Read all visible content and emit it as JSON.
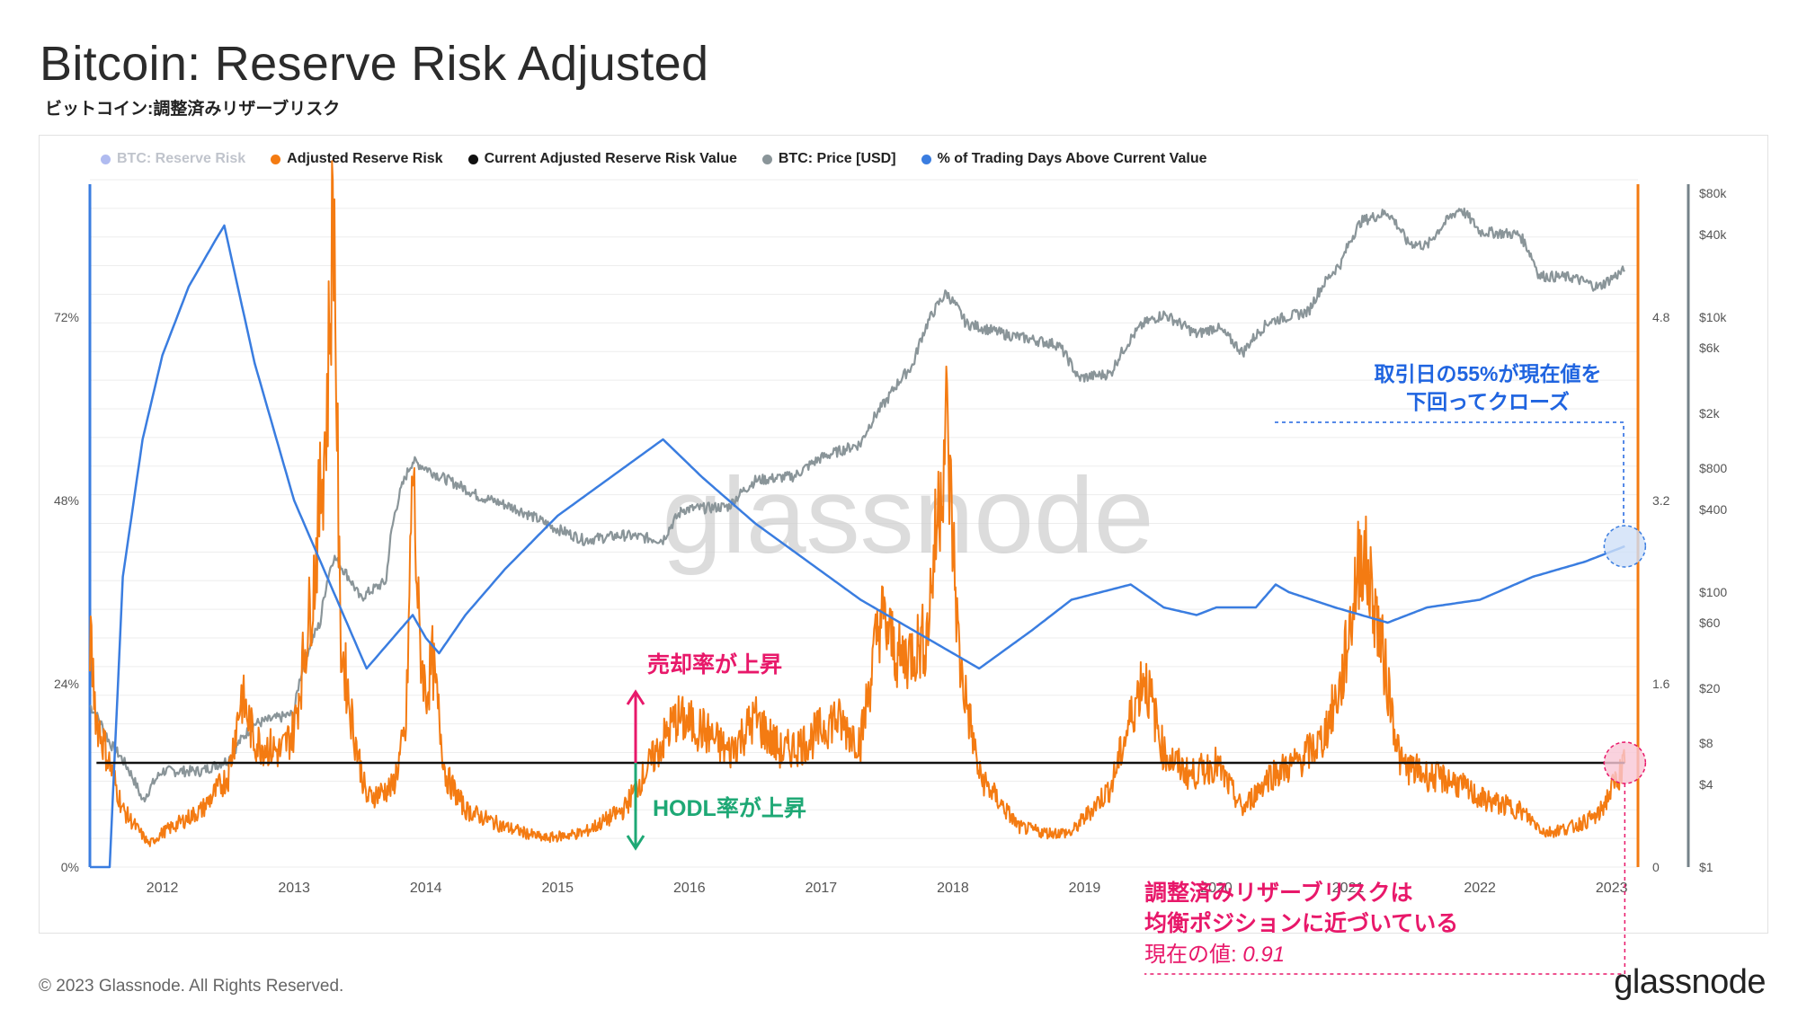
{
  "title": "Bitcoin: Reserve Risk Adjusted",
  "subtitle": "ビットコイン:調整済みリザーブリスク",
  "footer": "© 2023 Glassnode. All Rights Reserved.",
  "logo": "glassnode",
  "watermark": "glassnode",
  "colors": {
    "reserve_risk": "#7b8de6",
    "adjusted": "#f47b12",
    "current": "#111111",
    "price": "#8a9599",
    "pct": "#3a7de0",
    "pink": "#e8186a",
    "green": "#1ea875",
    "annotation_blue": "#1f64e0"
  },
  "legend": [
    {
      "label": "BTC: Reserve Risk",
      "color": "#7b8de6",
      "muted": true
    },
    {
      "label": "Adjusted Reserve Risk",
      "color": "#f47b12",
      "muted": false
    },
    {
      "label": "Current Adjusted Reserve Risk Value",
      "color": "#111111",
      "muted": false
    },
    {
      "label": "BTC: Price [USD]",
      "color": "#8a9599",
      "muted": false
    },
    {
      "label": "% of Trading Days Above Current Value",
      "color": "#3a7de0",
      "muted": false
    }
  ],
  "annotations": {
    "selling_up": "売却率が上昇",
    "hodl_up": "HODL率が上昇",
    "pct_note_line1": "取引日の55%が現在値を",
    "pct_note_line2": "下回ってクローズ",
    "equilibrium_line1": "調整済みリザーブリスクは",
    "equilibrium_line2": "均衡ポジションに近づいている",
    "current_label": "現在の値: ",
    "current_value": "0.91"
  },
  "chart_data": {
    "type": "line",
    "x_domain": [
      2011.45,
      2023.2
    ],
    "x_ticks": [
      "2012",
      "2013",
      "2014",
      "2015",
      "2016",
      "2017",
      "2018",
      "2019",
      "2020",
      "2021",
      "2022",
      "2023"
    ],
    "left_axis": {
      "label": "% of Trading Days Above Current Value",
      "ticks": [
        "0%",
        "24%",
        "48%",
        "72%"
      ],
      "range": [
        0,
        90
      ]
    },
    "right_axis_risk": {
      "label": "Adjusted Reserve Risk",
      "ticks": [
        "0",
        "1.6",
        "3.2",
        "4.8"
      ],
      "range": [
        0,
        6
      ]
    },
    "right_axis_price": {
      "label": "BTC: Price [USD]",
      "scale": "log",
      "ticks": [
        "$1",
        "$4",
        "$8",
        "$20",
        "$60",
        "$100",
        "$400",
        "$800",
        "$2k",
        "$6k",
        "$10k",
        "$40k",
        "$80k"
      ],
      "range": [
        1,
        100000
      ]
    },
    "current_adjusted_value": 0.91,
    "series": [
      {
        "name": "% of Trading Days Above Current Value",
        "axis": "left",
        "points": [
          [
            2011.45,
            0
          ],
          [
            2011.6,
            0
          ],
          [
            2011.7,
            38
          ],
          [
            2011.85,
            56
          ],
          [
            2012.0,
            67
          ],
          [
            2012.2,
            76
          ],
          [
            2012.4,
            82
          ],
          [
            2012.47,
            84
          ],
          [
            2012.7,
            66
          ],
          [
            2013.0,
            48
          ],
          [
            2013.3,
            36
          ],
          [
            2013.5,
            28
          ],
          [
            2013.55,
            26
          ],
          [
            2013.75,
            30
          ],
          [
            2013.9,
            33
          ],
          [
            2014.0,
            30
          ],
          [
            2014.1,
            28
          ],
          [
            2014.3,
            33
          ],
          [
            2014.6,
            39
          ],
          [
            2015.0,
            46
          ],
          [
            2015.4,
            51
          ],
          [
            2015.8,
            56
          ],
          [
            2016.1,
            51
          ],
          [
            2016.5,
            45
          ],
          [
            2016.9,
            40
          ],
          [
            2017.3,
            35
          ],
          [
            2017.7,
            31
          ],
          [
            2018.0,
            28
          ],
          [
            2018.2,
            26
          ],
          [
            2018.6,
            31
          ],
          [
            2018.9,
            35
          ],
          [
            2019.35,
            37
          ],
          [
            2019.6,
            34
          ],
          [
            2019.85,
            33
          ],
          [
            2020.0,
            34
          ],
          [
            2020.3,
            34
          ],
          [
            2020.45,
            37
          ],
          [
            2020.55,
            36
          ],
          [
            2020.9,
            34
          ],
          [
            2021.3,
            32
          ],
          [
            2021.6,
            34
          ],
          [
            2022.0,
            35
          ],
          [
            2022.4,
            38
          ],
          [
            2022.8,
            40
          ],
          [
            2023.1,
            42
          ]
        ]
      },
      {
        "name": "Adjusted Reserve Risk",
        "axis": "right_risk",
        "points": [
          [
            2011.45,
            2.0
          ],
          [
            2011.5,
            1.3
          ],
          [
            2011.7,
            0.5
          ],
          [
            2011.9,
            0.2
          ],
          [
            2012.0,
            0.3
          ],
          [
            2012.3,
            0.5
          ],
          [
            2012.5,
            0.8
          ],
          [
            2012.6,
            1.5
          ],
          [
            2012.7,
            1.1
          ],
          [
            2012.9,
            1.0
          ],
          [
            2013.0,
            1.2
          ],
          [
            2013.15,
            2.5
          ],
          [
            2013.25,
            4.0
          ],
          [
            2013.3,
            5.9
          ],
          [
            2013.35,
            2.0
          ],
          [
            2013.45,
            1.2
          ],
          [
            2013.55,
            0.6
          ],
          [
            2013.75,
            0.7
          ],
          [
            2013.85,
            1.2
          ],
          [
            2013.9,
            3.5
          ],
          [
            2013.95,
            2.0
          ],
          [
            2014.0,
            1.5
          ],
          [
            2014.05,
            1.8
          ],
          [
            2014.15,
            0.8
          ],
          [
            2014.3,
            0.5
          ],
          [
            2014.6,
            0.35
          ],
          [
            2014.9,
            0.25
          ],
          [
            2015.2,
            0.3
          ],
          [
            2015.5,
            0.5
          ],
          [
            2015.7,
            0.9
          ],
          [
            2015.9,
            1.3
          ],
          [
            2016.1,
            1.2
          ],
          [
            2016.3,
            1.0
          ],
          [
            2016.5,
            1.3
          ],
          [
            2016.7,
            1.0
          ],
          [
            2016.9,
            1.1
          ],
          [
            2017.1,
            1.3
          ],
          [
            2017.3,
            1.1
          ],
          [
            2017.45,
            2.2
          ],
          [
            2017.6,
            1.8
          ],
          [
            2017.8,
            2.0
          ],
          [
            2017.95,
            3.9
          ],
          [
            2018.05,
            1.8
          ],
          [
            2018.2,
            0.8
          ],
          [
            2018.5,
            0.35
          ],
          [
            2018.7,
            0.3
          ],
          [
            2018.9,
            0.3
          ],
          [
            2019.2,
            0.7
          ],
          [
            2019.45,
            1.7
          ],
          [
            2019.6,
            1.0
          ],
          [
            2019.8,
            0.8
          ],
          [
            2020.0,
            0.9
          ],
          [
            2020.2,
            0.5
          ],
          [
            2020.4,
            0.8
          ],
          [
            2020.6,
            0.9
          ],
          [
            2020.8,
            1.1
          ],
          [
            2020.95,
            1.6
          ],
          [
            2021.1,
            2.8
          ],
          [
            2021.2,
            2.3
          ],
          [
            2021.4,
            0.9
          ],
          [
            2021.6,
            0.8
          ],
          [
            2021.8,
            0.75
          ],
          [
            2022.0,
            0.6
          ],
          [
            2022.3,
            0.5
          ],
          [
            2022.5,
            0.3
          ],
          [
            2022.7,
            0.35
          ],
          [
            2022.9,
            0.45
          ],
          [
            2023.1,
            0.91
          ]
        ]
      },
      {
        "name": "BTC: Price [USD]",
        "axis": "right_price",
        "points": [
          [
            2011.45,
            15
          ],
          [
            2011.6,
            8
          ],
          [
            2011.85,
            3
          ],
          [
            2012.0,
            5
          ],
          [
            2012.3,
            5
          ],
          [
            2012.5,
            6
          ],
          [
            2012.7,
            11
          ],
          [
            2013.0,
            13
          ],
          [
            2013.2,
            60
          ],
          [
            2013.3,
            180
          ],
          [
            2013.5,
            90
          ],
          [
            2013.7,
            120
          ],
          [
            2013.9,
            900
          ],
          [
            2014.1,
            700
          ],
          [
            2014.4,
            500
          ],
          [
            2014.7,
            400
          ],
          [
            2014.95,
            300
          ],
          [
            2015.2,
            240
          ],
          [
            2015.5,
            260
          ],
          [
            2015.8,
            240
          ],
          [
            2015.95,
            400
          ],
          [
            2016.3,
            420
          ],
          [
            2016.5,
            650
          ],
          [
            2016.8,
            700
          ],
          [
            2017.0,
            950
          ],
          [
            2017.3,
            1200
          ],
          [
            2017.5,
            2500
          ],
          [
            2017.7,
            4500
          ],
          [
            2017.95,
            15000
          ],
          [
            2018.1,
            9000
          ],
          [
            2018.4,
            7500
          ],
          [
            2018.8,
            6300
          ],
          [
            2018.95,
            3600
          ],
          [
            2019.2,
            3900
          ],
          [
            2019.45,
            9000
          ],
          [
            2019.6,
            10500
          ],
          [
            2019.85,
            7500
          ],
          [
            2020.0,
            8500
          ],
          [
            2020.2,
            5500
          ],
          [
            2020.4,
            9300
          ],
          [
            2020.7,
            11000
          ],
          [
            2020.95,
            25000
          ],
          [
            2021.1,
            50000
          ],
          [
            2021.3,
            58000
          ],
          [
            2021.45,
            35000
          ],
          [
            2021.6,
            33000
          ],
          [
            2021.85,
            62000
          ],
          [
            2022.0,
            42000
          ],
          [
            2022.3,
            40000
          ],
          [
            2022.45,
            20000
          ],
          [
            2022.7,
            19500
          ],
          [
            2022.9,
            16500
          ],
          [
            2023.1,
            22000
          ]
        ]
      },
      {
        "name": "Current Adjusted Reserve Risk Value",
        "axis": "right_risk",
        "points": [
          [
            2011.5,
            0.91
          ],
          [
            2023.1,
            0.91
          ]
        ]
      }
    ]
  }
}
